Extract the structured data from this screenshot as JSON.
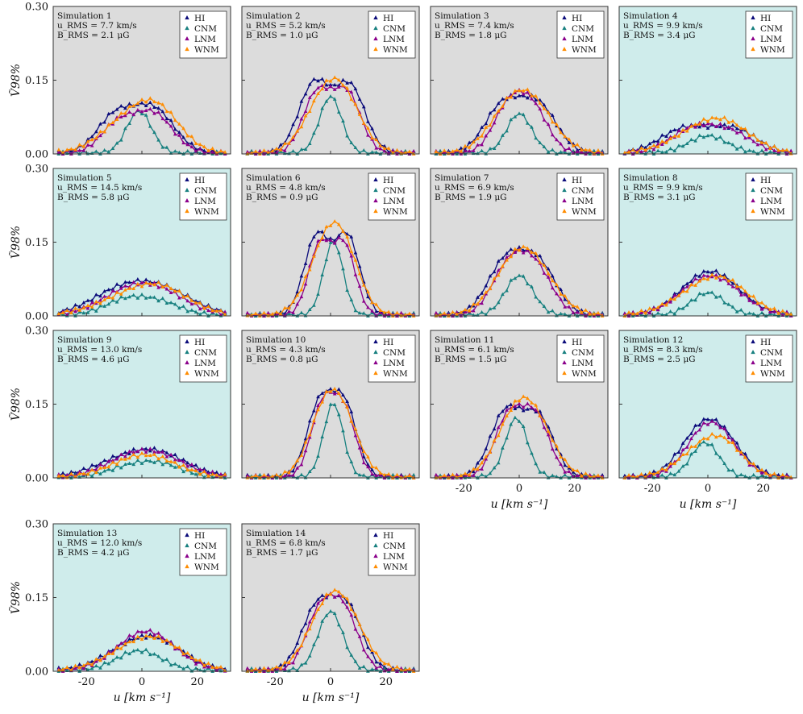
{
  "chart_data": {
    "type": "line",
    "layout": "grid-4x4-14-panels",
    "marker": "triangle",
    "ylabel": "Ṽ98%",
    "xlabel": "u [km s⁻¹]",
    "ylim": [
      0,
      0.3
    ],
    "yticks": [
      0.0,
      0.15,
      0.3
    ],
    "ytick_labels": [
      "0.00",
      "0.15",
      "0.30"
    ],
    "xlim": [
      -32,
      32
    ],
    "xticks": [
      -20,
      0,
      20
    ],
    "xtick_labels": [
      "-20",
      "0",
      "20"
    ],
    "legend_position": "top-right",
    "series_styles": [
      {
        "name": "HI",
        "color": "#0a0a7a"
      },
      {
        "name": "CNM",
        "color": "#17807f"
      },
      {
        "name": "LNM",
        "color": "#8b008b"
      },
      {
        "name": "WNM",
        "color": "#ff8c00"
      }
    ],
    "background_colors": {
      "gray": "#dcdcdc",
      "teal": "#cfeceb"
    },
    "panels": [
      {
        "title": "Simulation 1",
        "u_rms_line": "u_RMS = 7.7  km/s",
        "b_rms_line": "B_RMS = 2.1  μG",
        "background": "gray",
        "series": [
          {
            "name": "HI",
            "peaks": [
              {
                "c": -10,
                "a": 0.07,
                "w": 6.5
              },
              {
                "c": 4,
                "a": 0.09,
                "w": 7.5
              }
            ]
          },
          {
            "name": "CNM",
            "peaks": [
              {
                "c": -1,
                "a": 0.085,
                "w": 4.5
              }
            ]
          },
          {
            "name": "LNM",
            "peaks": [
              {
                "c": -9,
                "a": 0.055,
                "w": 6
              },
              {
                "c": 4,
                "a": 0.08,
                "w": 7
              }
            ]
          },
          {
            "name": "WNM",
            "peaks": [
              {
                "c": -4,
                "a": 0.07,
                "w": 10
              },
              {
                "c": 7,
                "a": 0.06,
                "w": 8
              }
            ]
          }
        ]
      },
      {
        "title": "Simulation 2",
        "u_rms_line": "u_RMS = 5.2  km/s",
        "b_rms_line": "B_RMS = 1.0  μG",
        "background": "gray",
        "series": [
          {
            "name": "HI",
            "peaks": [
              {
                "c": -6,
                "a": 0.14,
                "w": 5.5
              },
              {
                "c": 7,
                "a": 0.135,
                "w": 5.5
              }
            ]
          },
          {
            "name": "CNM",
            "peaks": [
              {
                "c": 0,
                "a": 0.115,
                "w": 4
              }
            ]
          },
          {
            "name": "LNM",
            "peaks": [
              {
                "c": -5,
                "a": 0.12,
                "w": 5
              },
              {
                "c": 6,
                "a": 0.12,
                "w": 5
              }
            ]
          },
          {
            "name": "WNM",
            "peaks": [
              {
                "c": -2,
                "a": 0.095,
                "w": 7.5
              },
              {
                "c": 5,
                "a": 0.075,
                "w": 7
              }
            ]
          }
        ]
      },
      {
        "title": "Simulation 3",
        "u_rms_line": "u_RMS = 7.4  km/s",
        "b_rms_line": "B_RMS = 1.8  μG",
        "background": "gray",
        "series": [
          {
            "name": "HI",
            "peaks": [
              {
                "c": -6,
                "a": 0.095,
                "w": 6.5
              },
              {
                "c": 7,
                "a": 0.095,
                "w": 6.5
              }
            ]
          },
          {
            "name": "CNM",
            "peaks": [
              {
                "c": 0,
                "a": 0.08,
                "w": 4.5
              }
            ]
          },
          {
            "name": "LNM",
            "peaks": [
              {
                "c": -4,
                "a": 0.09,
                "w": 5.5
              },
              {
                "c": 5,
                "a": 0.085,
                "w": 5.5
              }
            ]
          },
          {
            "name": "WNM",
            "peaks": [
              {
                "c": -3,
                "a": 0.08,
                "w": 8
              },
              {
                "c": 6,
                "a": 0.07,
                "w": 8
              }
            ]
          }
        ]
      },
      {
        "title": "Simulation 4",
        "u_rms_line": "u_RMS = 9.9  km/s",
        "b_rms_line": "B_RMS = 3.4  μG",
        "background": "teal",
        "series": [
          {
            "name": "HI",
            "peaks": [
              {
                "c": -8,
                "a": 0.05,
                "w": 9
              },
              {
                "c": 10,
                "a": 0.045,
                "w": 8
              }
            ]
          },
          {
            "name": "CNM",
            "peaks": [
              {
                "c": 0,
                "a": 0.035,
                "w": 7
              }
            ]
          },
          {
            "name": "LNM",
            "peaks": [
              {
                "c": -6,
                "a": 0.045,
                "w": 8
              },
              {
                "c": 8,
                "a": 0.04,
                "w": 8
              }
            ]
          },
          {
            "name": "WNM",
            "peaks": [
              {
                "c": -2,
                "a": 0.045,
                "w": 11
              },
              {
                "c": 8,
                "a": 0.035,
                "w": 9
              }
            ]
          }
        ]
      },
      {
        "title": "Simulation 5",
        "u_rms_line": "u_RMS = 14.5 km/s",
        "b_rms_line": "B_RMS = 5.8  μG",
        "background": "teal",
        "series": [
          {
            "name": "HI",
            "peaks": [
              {
                "c": -8,
                "a": 0.045,
                "w": 11
              },
              {
                "c": 8,
                "a": 0.045,
                "w": 11
              }
            ]
          },
          {
            "name": "CNM",
            "peaks": [
              {
                "c": -5,
                "a": 0.033,
                "w": 8
              },
              {
                "c": 8,
                "a": 0.02,
                "w": 7
              }
            ]
          },
          {
            "name": "LNM",
            "peaks": [
              {
                "c": -6,
                "a": 0.04,
                "w": 10
              },
              {
                "c": 7,
                "a": 0.04,
                "w": 10
              }
            ]
          },
          {
            "name": "WNM",
            "peaks": [
              {
                "c": -2,
                "a": 0.04,
                "w": 13
              },
              {
                "c": 8,
                "a": 0.03,
                "w": 10
              }
            ]
          }
        ]
      },
      {
        "title": "Simulation 6",
        "u_rms_line": "u_RMS = 4.8  km/s",
        "b_rms_line": "B_RMS = 0.9  μG",
        "background": "gray",
        "series": [
          {
            "name": "HI",
            "peaks": [
              {
                "c": -5,
                "a": 0.16,
                "w": 4.5
              },
              {
                "c": 6,
                "a": 0.16,
                "w": 4.5
              }
            ]
          },
          {
            "name": "CNM",
            "peaks": [
              {
                "c": 1,
                "a": 0.15,
                "w": 3.5
              }
            ]
          },
          {
            "name": "LNM",
            "peaks": [
              {
                "c": -4,
                "a": 0.14,
                "w": 4
              },
              {
                "c": 5,
                "a": 0.14,
                "w": 4
              }
            ]
          },
          {
            "name": "WNM",
            "peaks": [
              {
                "c": -2,
                "a": 0.12,
                "w": 6.5
              },
              {
                "c": 5,
                "a": 0.1,
                "w": 6
              }
            ]
          }
        ]
      },
      {
        "title": "Simulation 7",
        "u_rms_line": "u_RMS = 6.9  km/s",
        "b_rms_line": "B_RMS = 1.9  μG",
        "background": "gray",
        "series": [
          {
            "name": "HI",
            "peaks": [
              {
                "c": -5,
                "a": 0.105,
                "w": 6.5
              },
              {
                "c": 7,
                "a": 0.1,
                "w": 6.5
              }
            ]
          },
          {
            "name": "CNM",
            "peaks": [
              {
                "c": 0,
                "a": 0.08,
                "w": 5
              }
            ]
          },
          {
            "name": "LNM",
            "peaks": [
              {
                "c": -4,
                "a": 0.095,
                "w": 6
              },
              {
                "c": 6,
                "a": 0.09,
                "w": 6
              }
            ]
          },
          {
            "name": "WNM",
            "peaks": [
              {
                "c": -2,
                "a": 0.085,
                "w": 8
              },
              {
                "c": 6,
                "a": 0.07,
                "w": 8
              }
            ]
          }
        ]
      },
      {
        "title": "Simulation 8",
        "u_rms_line": "u_RMS = 9.9  km/s",
        "b_rms_line": "B_RMS = 3.1  μG",
        "background": "teal",
        "series": [
          {
            "name": "HI",
            "peaks": [
              {
                "c": -3,
                "a": 0.055,
                "w": 9
              },
              {
                "c": 6,
                "a": 0.045,
                "w": 9
              }
            ]
          },
          {
            "name": "CNM",
            "peaks": [
              {
                "c": 0,
                "a": 0.045,
                "w": 6
              }
            ]
          },
          {
            "name": "LNM",
            "peaks": [
              {
                "c": -3,
                "a": 0.05,
                "w": 9
              },
              {
                "c": 6,
                "a": 0.04,
                "w": 9
              }
            ]
          },
          {
            "name": "WNM",
            "peaks": [
              {
                "c": -1,
                "a": 0.05,
                "w": 11
              },
              {
                "c": 7,
                "a": 0.035,
                "w": 9
              }
            ]
          }
        ]
      },
      {
        "title": "Simulation 9",
        "u_rms_line": "u_RMS = 13.0 km/s",
        "b_rms_line": "B_RMS = 4.6  μG",
        "background": "teal",
        "series": [
          {
            "name": "HI",
            "peaks": [
              {
                "c": -6,
                "a": 0.035,
                "w": 11
              },
              {
                "c": 8,
                "a": 0.035,
                "w": 10
              }
            ]
          },
          {
            "name": "CNM",
            "peaks": [
              {
                "c": -2,
                "a": 0.025,
                "w": 9
              },
              {
                "c": 9,
                "a": 0.015,
                "w": 7
              }
            ]
          },
          {
            "name": "LNM",
            "peaks": [
              {
                "c": -4,
                "a": 0.035,
                "w": 10
              },
              {
                "c": 8,
                "a": 0.03,
                "w": 10
              }
            ]
          },
          {
            "name": "WNM",
            "peaks": [
              {
                "c": 1,
                "a": 0.045,
                "w": 11
              }
            ]
          }
        ]
      },
      {
        "title": "Simulation 10",
        "u_rms_line": "u_RMS = 4.3  km/s",
        "b_rms_line": "B_RMS = 0.8  μG",
        "background": "gray",
        "series": [
          {
            "name": "HI",
            "peaks": [
              {
                "c": -4,
                "a": 0.145,
                "w": 4.5
              },
              {
                "c": 5,
                "a": 0.145,
                "w": 4.5
              }
            ]
          },
          {
            "name": "CNM",
            "peaks": [
              {
                "c": 1,
                "a": 0.15,
                "w": 3.5
              }
            ]
          },
          {
            "name": "LNM",
            "peaks": [
              {
                "c": -3,
                "a": 0.14,
                "w": 4.2
              },
              {
                "c": 5,
                "a": 0.13,
                "w": 4.2
              }
            ]
          },
          {
            "name": "WNM",
            "peaks": [
              {
                "c": -2,
                "a": 0.12,
                "w": 6
              },
              {
                "c": 5,
                "a": 0.09,
                "w": 6
              }
            ]
          }
        ]
      },
      {
        "title": "Simulation 11",
        "u_rms_line": "u_RMS = 6.1  km/s",
        "b_rms_line": "B_RMS = 1.5  μG",
        "background": "gray",
        "series": [
          {
            "name": "HI",
            "peaks": [
              {
                "c": -5,
                "a": 0.13,
                "w": 5.5
              },
              {
                "c": 7,
                "a": 0.12,
                "w": 5.5
              }
            ]
          },
          {
            "name": "CNM",
            "peaks": [
              {
                "c": -1,
                "a": 0.12,
                "w": 4
              }
            ]
          },
          {
            "name": "LNM",
            "peaks": [
              {
                "c": -4,
                "a": 0.12,
                "w": 5
              },
              {
                "c": 6,
                "a": 0.12,
                "w": 5
              }
            ]
          },
          {
            "name": "WNM",
            "peaks": [
              {
                "c": -2,
                "a": 0.1,
                "w": 7
              },
              {
                "c": 6,
                "a": 0.09,
                "w": 7
              }
            ]
          }
        ]
      },
      {
        "title": "Simulation 12",
        "u_rms_line": "u_RMS = 8.3  km/s",
        "b_rms_line": "B_RMS = 2.5  μG",
        "background": "teal",
        "series": [
          {
            "name": "HI",
            "peaks": [
              {
                "c": -3,
                "a": 0.08,
                "w": 7.5
              },
              {
                "c": 6,
                "a": 0.06,
                "w": 7.5
              }
            ]
          },
          {
            "name": "CNM",
            "peaks": [
              {
                "c": -1,
                "a": 0.07,
                "w": 5
              }
            ]
          },
          {
            "name": "LNM",
            "peaks": [
              {
                "c": -2,
                "a": 0.075,
                "w": 7
              },
              {
                "c": 6,
                "a": 0.055,
                "w": 7
              }
            ]
          },
          {
            "name": "WNM",
            "peaks": [
              {
                "c": -1,
                "a": 0.06,
                "w": 9
              },
              {
                "c": 7,
                "a": 0.035,
                "w": 7
              }
            ]
          }
        ]
      },
      {
        "title": "Simulation 13",
        "u_rms_line": "u_RMS = 12.0 km/s",
        "b_rms_line": "B_RMS = 4.2  μG",
        "background": "teal",
        "series": [
          {
            "name": "HI",
            "peaks": [
              {
                "c": -4,
                "a": 0.045,
                "w": 10
              },
              {
                "c": 8,
                "a": 0.04,
                "w": 9
              }
            ]
          },
          {
            "name": "CNM",
            "peaks": [
              {
                "c": -1,
                "a": 0.04,
                "w": 8
              }
            ]
          },
          {
            "name": "LNM",
            "peaks": [
              {
                "c": -3,
                "a": 0.045,
                "w": 9
              },
              {
                "c": 6,
                "a": 0.045,
                "w": 9
              }
            ]
          },
          {
            "name": "WNM",
            "peaks": [
              {
                "c": -2,
                "a": 0.04,
                "w": 11
              },
              {
                "c": 7,
                "a": 0.035,
                "w": 10
              }
            ]
          }
        ]
      },
      {
        "title": "Simulation 14",
        "u_rms_line": "u_RMS = 6.8  km/s",
        "b_rms_line": "B_RMS = 1.7  μG",
        "background": "gray",
        "series": [
          {
            "name": "HI",
            "peaks": [
              {
                "c": -5,
                "a": 0.125,
                "w": 5.5
              },
              {
                "c": 6,
                "a": 0.125,
                "w": 5.5
              }
            ]
          },
          {
            "name": "CNM",
            "peaks": [
              {
                "c": 0,
                "a": 0.12,
                "w": 4.5
              }
            ]
          },
          {
            "name": "LNM",
            "peaks": [
              {
                "c": -4,
                "a": 0.115,
                "w": 5
              },
              {
                "c": 5,
                "a": 0.115,
                "w": 5
              }
            ]
          },
          {
            "name": "WNM",
            "peaks": [
              {
                "c": -2,
                "a": 0.1,
                "w": 7
              },
              {
                "c": 6,
                "a": 0.09,
                "w": 7
              }
            ]
          }
        ]
      }
    ]
  }
}
